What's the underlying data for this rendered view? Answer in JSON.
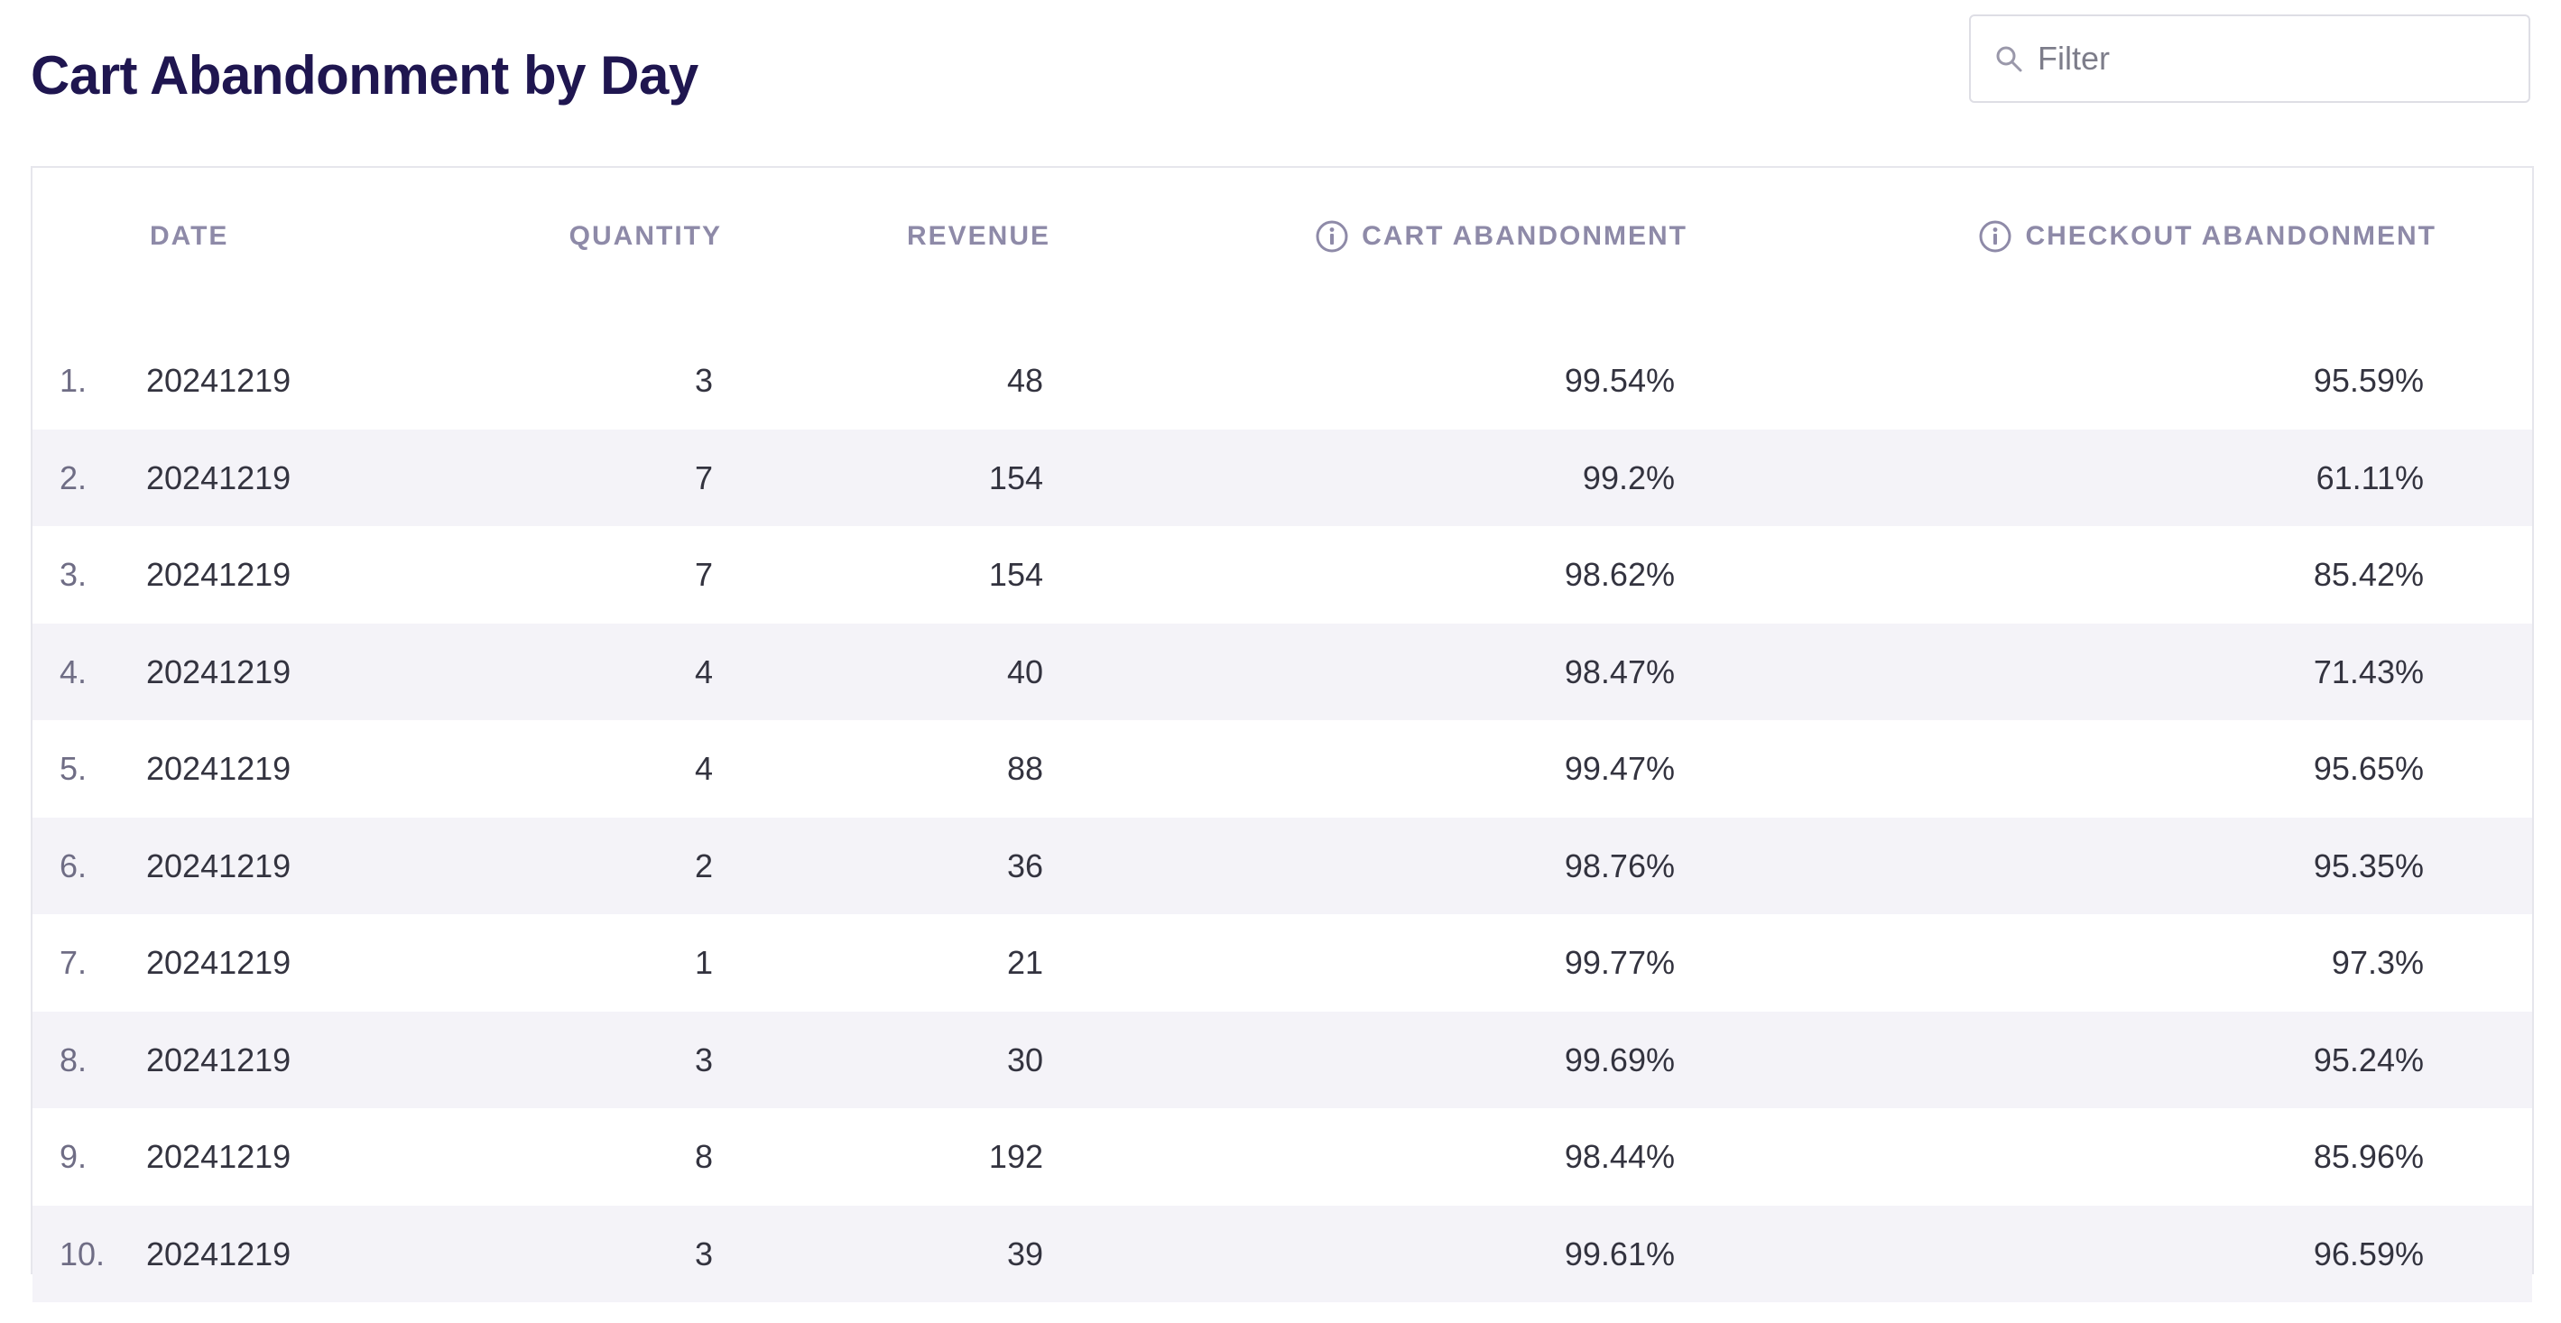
{
  "page": {
    "title": "Cart Abandonment by Day"
  },
  "filter": {
    "placeholder": "Filter",
    "value": "",
    "icon": "search-icon"
  },
  "table": {
    "headers": {
      "date": "DATE",
      "quantity": "QUANTITY",
      "revenue": "REVENUE",
      "cart_abandonment": "CART ABANDONMENT",
      "checkout_abandonment": "CHECKOUT ABANDONMENT"
    },
    "header_icons": {
      "cart_abandonment": "info-icon",
      "checkout_abandonment": "info-icon"
    },
    "rows": [
      {
        "index": "1.",
        "date": "20241219",
        "quantity": "3",
        "revenue": "48",
        "cart_abandonment": "99.54%",
        "checkout_abandonment": "95.59%"
      },
      {
        "index": "2.",
        "date": "20241219",
        "quantity": "7",
        "revenue": "154",
        "cart_abandonment": "99.2%",
        "checkout_abandonment": "61.11%"
      },
      {
        "index": "3.",
        "date": "20241219",
        "quantity": "7",
        "revenue": "154",
        "cart_abandonment": "98.62%",
        "checkout_abandonment": "85.42%"
      },
      {
        "index": "4.",
        "date": "20241219",
        "quantity": "4",
        "revenue": "40",
        "cart_abandonment": "98.47%",
        "checkout_abandonment": "71.43%"
      },
      {
        "index": "5.",
        "date": "20241219",
        "quantity": "4",
        "revenue": "88",
        "cart_abandonment": "99.47%",
        "checkout_abandonment": "95.65%"
      },
      {
        "index": "6.",
        "date": "20241219",
        "quantity": "2",
        "revenue": "36",
        "cart_abandonment": "98.76%",
        "checkout_abandonment": "95.35%"
      },
      {
        "index": "7.",
        "date": "20241219",
        "quantity": "1",
        "revenue": "21",
        "cart_abandonment": "99.77%",
        "checkout_abandonment": "97.3%"
      },
      {
        "index": "8.",
        "date": "20241219",
        "quantity": "3",
        "revenue": "30",
        "cart_abandonment": "99.69%",
        "checkout_abandonment": "95.24%"
      },
      {
        "index": "9.",
        "date": "20241219",
        "quantity": "8",
        "revenue": "192",
        "cart_abandonment": "98.44%",
        "checkout_abandonment": "85.96%"
      },
      {
        "index": "10.",
        "date": "20241219",
        "quantity": "3",
        "revenue": "39",
        "cart_abandonment": "99.61%",
        "checkout_abandonment": "96.59%"
      }
    ]
  },
  "colors": {
    "title": "#1f1650",
    "header_text": "#8e8aa8",
    "row_alt_background": "#f4f3f8",
    "border": "#e6e6ec"
  }
}
